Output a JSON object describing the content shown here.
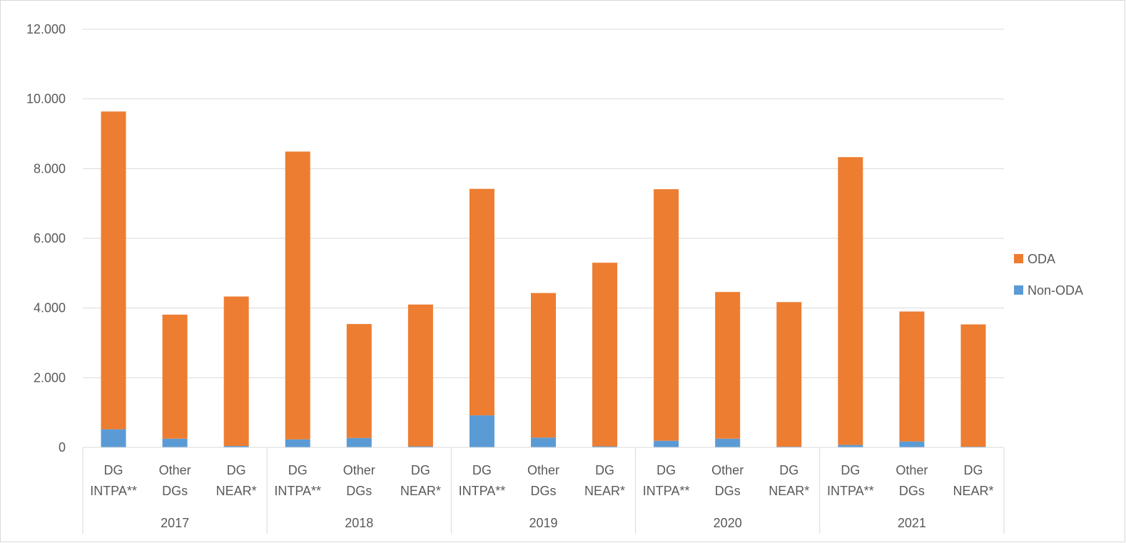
{
  "chart_data": {
    "type": "bar",
    "stacked": true,
    "y_tick_labels": [
      "0",
      "2.000",
      "4.000",
      "6.000",
      "8.000",
      "10.000",
      "12.000"
    ],
    "ylim": [
      0,
      12000
    ],
    "grid": true,
    "legend_position": "right",
    "groups": [
      {
        "label": "2017",
        "categories": [
          "DG INTPA**",
          "Other DGs",
          "DG NEAR*"
        ]
      },
      {
        "label": "2018",
        "categories": [
          "DG INTPA**",
          "Other DGs",
          "DG NEAR*"
        ]
      },
      {
        "label": "2019",
        "categories": [
          "DG INTPA**",
          "Other DGs",
          "DG NEAR*"
        ]
      },
      {
        "label": "2020",
        "categories": [
          "DG INTPA**",
          "Other DGs",
          "DG NEAR*"
        ]
      },
      {
        "label": "2021",
        "categories": [
          "DG INTPA**",
          "Other DGs",
          "DG NEAR*"
        ]
      }
    ],
    "series": [
      {
        "name": "Non-ODA",
        "color": "#5b9bd5",
        "values": [
          520,
          250,
          40,
          230,
          270,
          30,
          920,
          280,
          30,
          190,
          250,
          20,
          70,
          170,
          20
        ]
      },
      {
        "name": "ODA",
        "color": "#ed7d31",
        "values": [
          9120,
          3560,
          4290,
          8260,
          3270,
          4070,
          6500,
          4150,
          5270,
          7220,
          4210,
          4150,
          8260,
          3730,
          3510
        ]
      }
    ],
    "legend": [
      {
        "name": "ODA",
        "color": "#ed7d31"
      },
      {
        "name": "Non-ODA",
        "color": "#5b9bd5"
      }
    ]
  }
}
